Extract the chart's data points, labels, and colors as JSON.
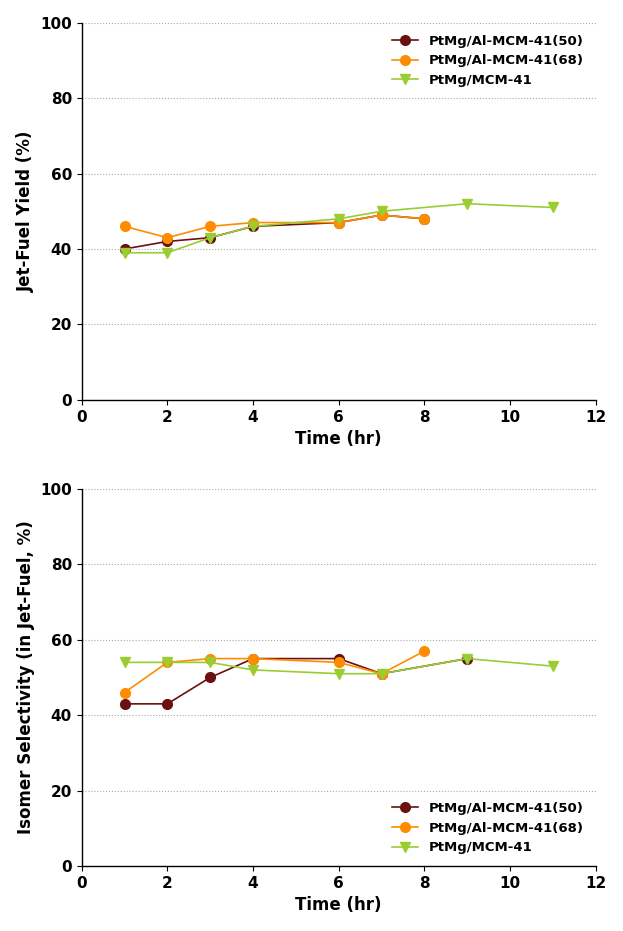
{
  "top_plot": {
    "ylabel": "Jet-Fuel Yield (%)",
    "xlabel": "Time (hr)",
    "xlim": [
      0,
      12
    ],
    "ylim": [
      0,
      100
    ],
    "yticks": [
      0,
      20,
      40,
      60,
      80,
      100
    ],
    "xticks": [
      0,
      2,
      4,
      6,
      8,
      10,
      12
    ],
    "series": [
      {
        "label": "PtMg/Al-MCM-41(50)",
        "color": "#6B1010",
        "marker": "o",
        "x": [
          1,
          2,
          3,
          4,
          6,
          7,
          8
        ],
        "y": [
          40,
          42,
          43,
          46,
          47,
          49,
          48
        ]
      },
      {
        "label": "PtMg/Al-MCM-41(68)",
        "color": "#FF8C00",
        "marker": "o",
        "x": [
          1,
          2,
          3,
          4,
          6,
          7,
          8
        ],
        "y": [
          46,
          43,
          46,
          47,
          47,
          49,
          48
        ]
      },
      {
        "label": "PtMg/MCM-41",
        "color": "#9ACD32",
        "marker": "v",
        "x": [
          1,
          2,
          3,
          4,
          6,
          7,
          9,
          11
        ],
        "y": [
          39,
          39,
          43,
          46,
          48,
          50,
          52,
          51
        ]
      }
    ],
    "legend_loc": "upper right"
  },
  "bottom_plot": {
    "ylabel": "Isomer Selectivity (in Jet-Fuel, %)",
    "xlabel": "Time (hr)",
    "xlim": [
      0,
      12
    ],
    "ylim": [
      0,
      100
    ],
    "yticks": [
      0,
      20,
      40,
      60,
      80,
      100
    ],
    "xticks": [
      0,
      2,
      4,
      6,
      8,
      10,
      12
    ],
    "series": [
      {
        "label": "PtMg/Al-MCM-41(50)",
        "color": "#6B1010",
        "marker": "o",
        "x": [
          1,
          2,
          3,
          4,
          6,
          7,
          9
        ],
        "y": [
          43,
          43,
          50,
          55,
          55,
          51,
          55
        ]
      },
      {
        "label": "PtMg/Al-MCM-41(68)",
        "color": "#FF8C00",
        "marker": "o",
        "x": [
          1,
          2,
          3,
          4,
          6,
          7,
          8
        ],
        "y": [
          46,
          54,
          55,
          55,
          54,
          51,
          57
        ]
      },
      {
        "label": "PtMg/MCM-41",
        "color": "#9ACD32",
        "marker": "v",
        "x": [
          1,
          2,
          3,
          4,
          6,
          7,
          9,
          11
        ],
        "y": [
          54,
          54,
          54,
          52,
          51,
          51,
          55,
          53
        ]
      }
    ],
    "legend_loc": "lower right"
  },
  "background_color": "#FFFFFF",
  "grid_color": "#AAAAAA",
  "marker_size": 7,
  "line_width": 1.2,
  "font_size_label": 12,
  "font_size_tick": 11,
  "font_size_legend": 9.5
}
